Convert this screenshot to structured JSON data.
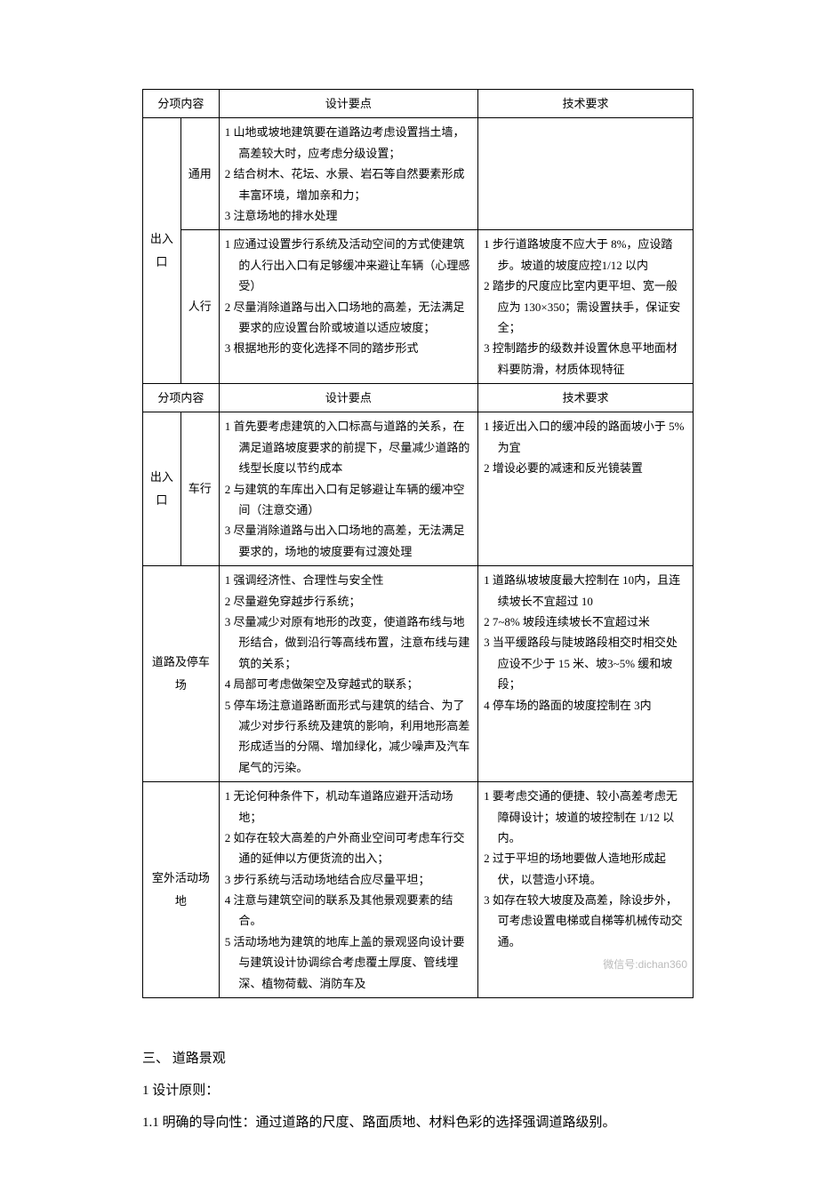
{
  "headers": {
    "cat": "分项内容",
    "points": "设计要点",
    "req": "技术要求"
  },
  "rows": [
    {
      "cat": "",
      "sub": "通用",
      "points": "1 山地或坡地建筑要在道路边考虑设置挡土墙，高差较大时，应考虑分级设置；\n2 结合树木、花坛、水景、岩石等自然要素形成丰富环境，增加亲和力；\n3 注意场地的排水处理",
      "req": ""
    },
    {
      "cat": "出入口",
      "sub": "人行",
      "points": "1 应通过设置步行系统及活动空间的方式使建筑的人行出入口有足够缓冲来避让车辆（心理感受）\n2 尽量消除道路与出入口场地的高差，无法满足要求的应设置台阶或坡道以适应坡度；\n3 根据地形的变化选择不同的踏步形式",
      "req": "1 步行道路坡度不应大于 8%，应设踏步。坡道的坡度应控1/12 以内\n2 踏步的尺度应比室内更平坦、宽一般应为 130×350；需设置扶手，保证安全；\n3 控制踏步的级数并设置休息平地面材料要防滑，材质体现特征"
    }
  ],
  "rows2": [
    {
      "cat": "出入口",
      "sub": "车行",
      "points": "1 首先要考虑建筑的入口标高与道路的关系，在满足道路坡度要求的前提下，尽量减少道路的线型长度以节约成本\n2 与建筑的车库出入口有足够避让车辆的缓冲空间（注意交通）\n3 尽量消除道路与出入口场地的高差，无法满足要求的，场地的坡度要有过渡处理",
      "req": "1 接近出入口的缓冲段的路面坡小于 5% 为宜\n2 增设必要的减速和反光镜装置"
    },
    {
      "cat": "道路及停车场",
      "sub": "",
      "points": "1 强调经济性、合理性与安全性\n2 尽量避免穿越步行系统；\n3 尽量减少对原有地形的改变，使道路布线与地形结合，做到沿行等高线布置，注意布线与建筑的关系；\n4 局部可考虑做架空及穿越式的联系；\n5 停车场注意道路断面形式与建筑的结合、为了减少对步行系统及建筑的影响，利用地形高差形成适当的分隔、增加绿化，减少噪声及汽车尾气的污染。",
      "req": "1 道路纵坡坡度最大控制在 10内，且连续坡长不宜超过 10\n2 7~8% 坡段连续坡长不宜超过米\n3 当平缓路段与陡坡路段相交时相交处应设不少于 15 米、坡3~5% 缓和坡段；\n4 停车场的路面的坡度控制在 3内"
    },
    {
      "cat": "室外活动场地",
      "sub": "",
      "points": "1 无论何种条件下，机动车道路应避开活动场地；\n2 如存在较大高差的户外商业空间可考虑车行交通的延伸以方便货流的出入；\n3 步行系统与活动场地结合应尽量平坦；\n4 注意与建筑空间的联系及其他景观要素的结合。\n5 活动场地为建筑的地库上盖的景观竖向设计要与建筑设计协调综合考虑覆土厚度、管线埋深、植物荷载、消防车及",
      "req": "1 要考虑交通的便捷、较小高差考虑无障碍设计；坡道的坡控制在 1/12 以内。\n2 过于平坦的场地要做人造地形成起伏，以营造小环境。\n3 如存在较大坡度及高差，除设步外，可考虑设置电梯或自梯等机械传动交通。"
    }
  ],
  "watermark": "微信号:dichan360",
  "section": {
    "title": "三、 道路景观",
    "line1": "1 设计原则：",
    "line2": "1.1  明确的导向性：通过道路的尺度、路面质地、材料色彩的选择强调道路级别。"
  }
}
